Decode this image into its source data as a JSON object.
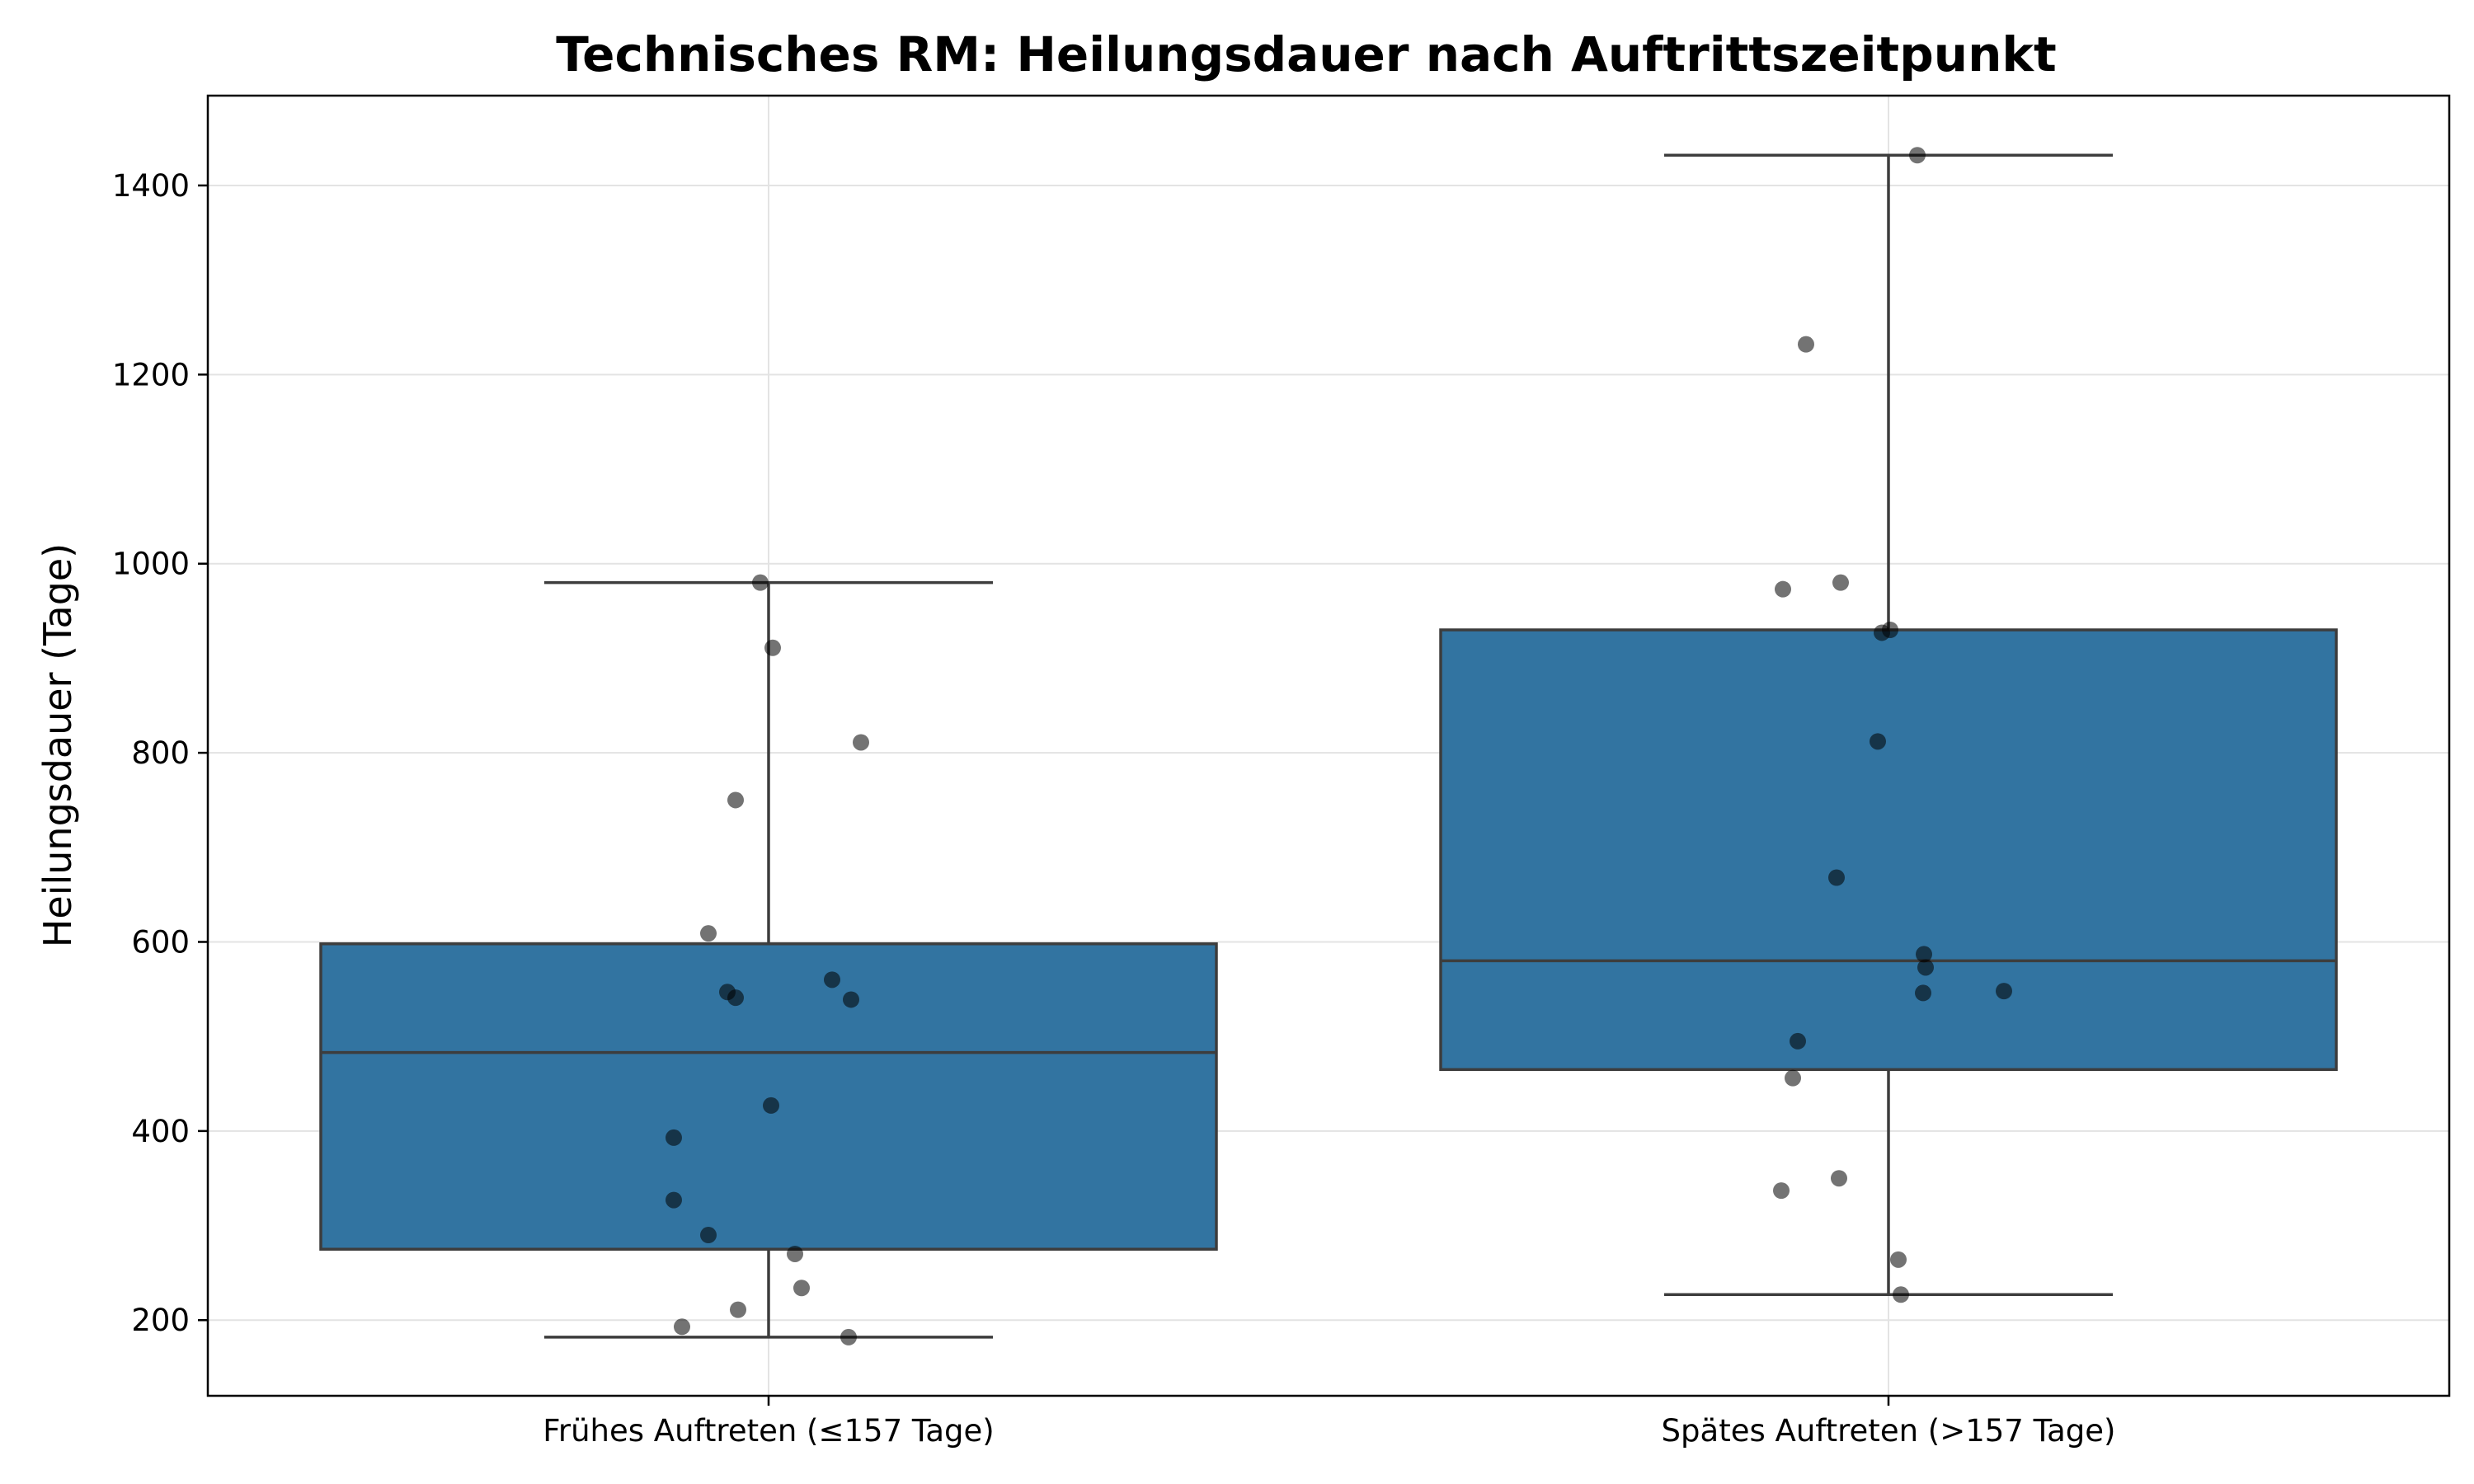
{
  "chart_data": {
    "type": "box",
    "title": "Technisches RM: Heilungsdauer nach Auftrittszeitpunkt",
    "xlabel": "",
    "ylabel": "Heilungsdauer (Tage)",
    "ylim": [
      120,
      1495
    ],
    "yticks": [
      200,
      400,
      600,
      800,
      1000,
      1200,
      1400
    ],
    "grid": true,
    "categories": [
      "Frühes Auftreten (≤157 Tage)",
      "Spätes Auftreten (>157 Tage)"
    ],
    "box_color": "#3274a1",
    "point_color": "#000000",
    "groups": [
      {
        "category": "Frühes Auftreten (≤157 Tage)",
        "whisker_low": 182,
        "q1": 275,
        "median": 483,
        "q3": 598,
        "whisker_high": 980,
        "points": [
          980,
          911,
          811,
          750,
          609,
          560,
          547,
          541,
          539,
          427,
          393,
          327,
          290,
          270,
          234,
          211,
          193,
          182
        ]
      },
      {
        "category": "Spätes Auftreten (>157 Tage)",
        "whisker_low": 227,
        "q1": 465,
        "median": 580,
        "q3": 930,
        "whisker_high": 1432,
        "points": [
          1432,
          1232,
          980,
          973,
          930,
          927,
          812,
          668,
          587,
          573,
          548,
          546,
          495,
          456,
          350,
          337,
          264,
          227
        ]
      }
    ]
  }
}
